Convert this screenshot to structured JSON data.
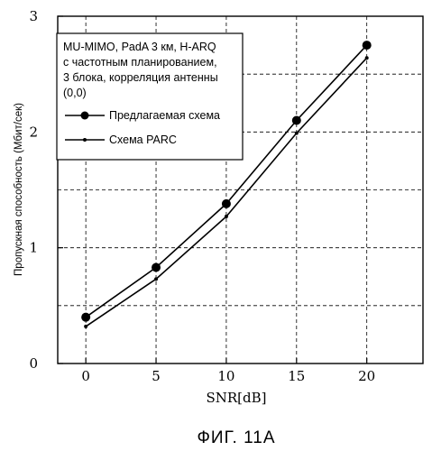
{
  "chart_data": {
    "type": "line",
    "title_lines": [
      "MU-MIMO, PadA 3 км, H-ARQ",
      "с частотным планированием,",
      "3 блока, корреляция антенны",
      "(0,0)"
    ],
    "xlabel": "SNR[dB]",
    "ylabel": "Пропускная способность (Мбит/сек)",
    "x": [
      0,
      5,
      10,
      15,
      20
    ],
    "xlim": [
      -2,
      24
    ],
    "ylim": [
      0,
      3
    ],
    "xticks": [
      "0",
      "5",
      "10",
      "15",
      "20"
    ],
    "yticks": [
      "0",
      "1",
      "2",
      "3"
    ],
    "grid": true,
    "legend_position": "top-left",
    "series": [
      {
        "name": "Предлагаемая схема",
        "values": [
          0.4,
          0.83,
          1.38,
          2.1,
          2.75
        ],
        "marker": "large-circle"
      },
      {
        "name": "Схема PARC",
        "values": [
          0.32,
          0.73,
          1.27,
          1.99,
          2.64
        ],
        "marker": "small-dot"
      }
    ]
  },
  "caption": "ФИГ. 11А"
}
